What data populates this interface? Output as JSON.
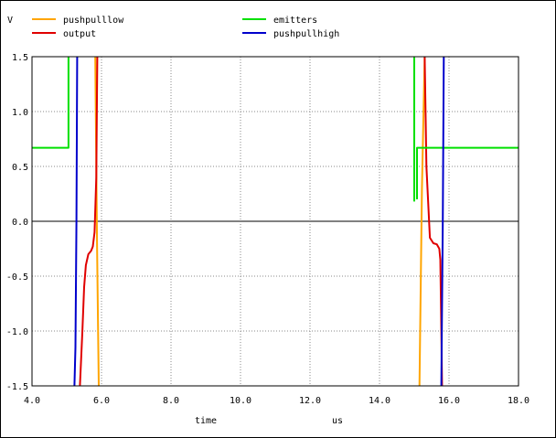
{
  "chart_data": {
    "type": "line",
    "ylabel": "V",
    "xlabel": "time",
    "xunit": "us",
    "xlim": [
      4.0,
      18.0
    ],
    "ylim": [
      -1.5,
      1.5
    ],
    "x_ticks": [
      "4.0",
      "6.0",
      "8.0",
      "10.0",
      "12.0",
      "14.0",
      "16.0",
      "18.0"
    ],
    "y_ticks": [
      "1.5",
      "1.0",
      "0.5",
      "0.0",
      "-0.5",
      "-1.0",
      "-1.5"
    ],
    "grid": true,
    "legend_position": "top",
    "series": [
      {
        "name": "pushpulllow",
        "color": "#ffa500",
        "points": [
          [
            5.82,
            1.6
          ],
          [
            5.87,
            -0.2
          ],
          [
            5.92,
            -1.6
          ],
          null,
          [
            15.15,
            -1.6
          ],
          [
            15.22,
            0.3
          ],
          [
            15.3,
            1.6
          ]
        ]
      },
      {
        "name": "output",
        "color": "#e00000",
        "points": [
          [
            5.38,
            -1.6
          ],
          [
            5.45,
            -1.0
          ],
          [
            5.5,
            -0.6
          ],
          [
            5.55,
            -0.4
          ],
          [
            5.62,
            -0.3
          ],
          [
            5.7,
            -0.27
          ],
          [
            5.75,
            -0.23
          ],
          [
            5.8,
            -0.1
          ],
          [
            5.85,
            0.4
          ],
          [
            5.88,
            1.6
          ],
          null,
          [
            15.3,
            1.6
          ],
          [
            15.35,
            0.5
          ],
          [
            15.45,
            -0.15
          ],
          [
            15.55,
            -0.2
          ],
          [
            15.65,
            -0.21
          ],
          [
            15.72,
            -0.25
          ],
          [
            15.75,
            -0.35
          ],
          [
            15.78,
            -1.0
          ],
          [
            15.8,
            -1.6
          ]
        ]
      },
      {
        "name": "emitters",
        "color": "#00e000",
        "points": [
          [
            4.0,
            0.67
          ],
          [
            5.05,
            0.67
          ],
          [
            5.05,
            1.6
          ],
          null,
          [
            15.0,
            1.6
          ],
          [
            15.0,
            0.18
          ],
          null,
          [
            15.08,
            0.2
          ],
          [
            15.08,
            0.67
          ],
          [
            18.0,
            0.67
          ]
        ]
      },
      {
        "name": "pushpullhigh",
        "color": "#0000cc",
        "points": [
          [
            5.22,
            -1.6
          ],
          [
            5.25,
            -1.15
          ],
          [
            5.28,
            0.0
          ],
          [
            5.3,
            1.6
          ],
          null,
          [
            15.78,
            -1.6
          ],
          [
            15.82,
            0.0
          ],
          [
            15.85,
            1.6
          ]
        ]
      }
    ],
    "zero_line_color": "#808080"
  }
}
